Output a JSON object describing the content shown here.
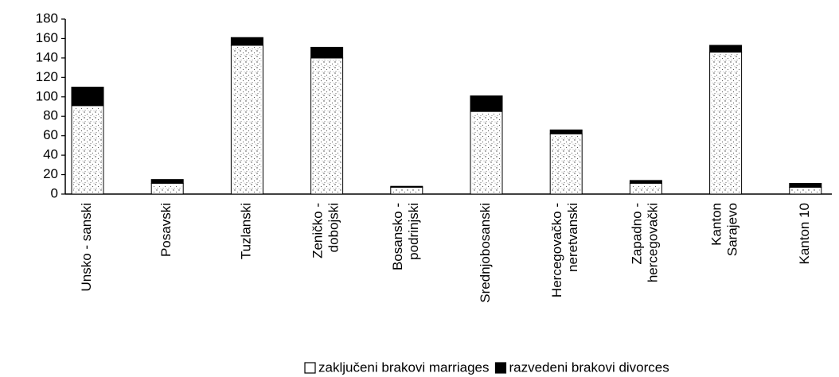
{
  "chart_data": {
    "type": "bar",
    "stacked": true,
    "categories": [
      "Unsko - sanski",
      "Posavski",
      "Tuzlanski",
      "Zeničko -\ndobojski",
      "Bosansko -\npodrinjski",
      "Srednjobosanski",
      "Hercegovačko -\nneretvanski",
      "Zapadno -\nhercegovački",
      "Kanton\nSarajevo",
      "Kanton 10"
    ],
    "series": [
      {
        "name": "zaključeni brakovi marriages",
        "color": "#ffffff",
        "values": [
          91,
          11,
          153,
          140,
          7,
          85,
          62,
          11,
          146,
          7
        ]
      },
      {
        "name": "razvedeni brakovi divorces",
        "color": "#000000",
        "values": [
          19,
          4,
          8,
          11,
          1,
          16,
          4,
          3,
          7,
          4
        ]
      }
    ],
    "ylim": [
      0,
      180
    ],
    "yticks": [
      0,
      20,
      40,
      60,
      80,
      100,
      120,
      140,
      160,
      180
    ],
    "legend": "bottom"
  }
}
